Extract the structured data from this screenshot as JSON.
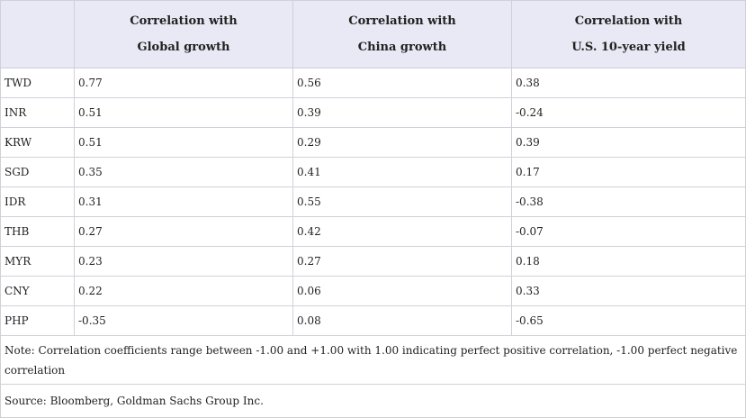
{
  "header": {
    "columns": [
      {
        "line1": "Correlation with",
        "line2": "Global growth"
      },
      {
        "line1": "Correlation with",
        "line2": "China growth"
      },
      {
        "line1": "Correlation with",
        "line2": "U.S. 10-year yield"
      }
    ]
  },
  "rows": [
    {
      "currency": "TWD",
      "global": "0.77",
      "china": "0.56",
      "us10y": "0.38"
    },
    {
      "currency": "INR",
      "global": "0.51",
      "china": "0.39",
      "us10y": "-0.24"
    },
    {
      "currency": "KRW",
      "global": "0.51",
      "china": "0.29",
      "us10y": "0.39"
    },
    {
      "currency": "SGD",
      "global": "0.35",
      "china": "0.41",
      "us10y": "0.17"
    },
    {
      "currency": "IDR",
      "global": "0.31",
      "china": "0.55",
      "us10y": "-0.38"
    },
    {
      "currency": "THB",
      "global": "0.27",
      "china": "0.42",
      "us10y": "-0.07"
    },
    {
      "currency": "MYR",
      "global": "0.23",
      "china": "0.27",
      "us10y": "0.18"
    },
    {
      "currency": "CNY",
      "global": "0.22",
      "china": "0.06",
      "us10y": "0.33"
    },
    {
      "currency": "PHP",
      "global": "-0.35",
      "china": "0.08",
      "us10y": "-0.65"
    }
  ],
  "footer": {
    "note": "Note: Correlation coefficients range between -1.00 and +1.00 with 1.00 indicating perfect positive correlation, -1.00 perfect negative correlation",
    "source": "Source: Bloomberg, Goldman Sachs Group Inc."
  }
}
